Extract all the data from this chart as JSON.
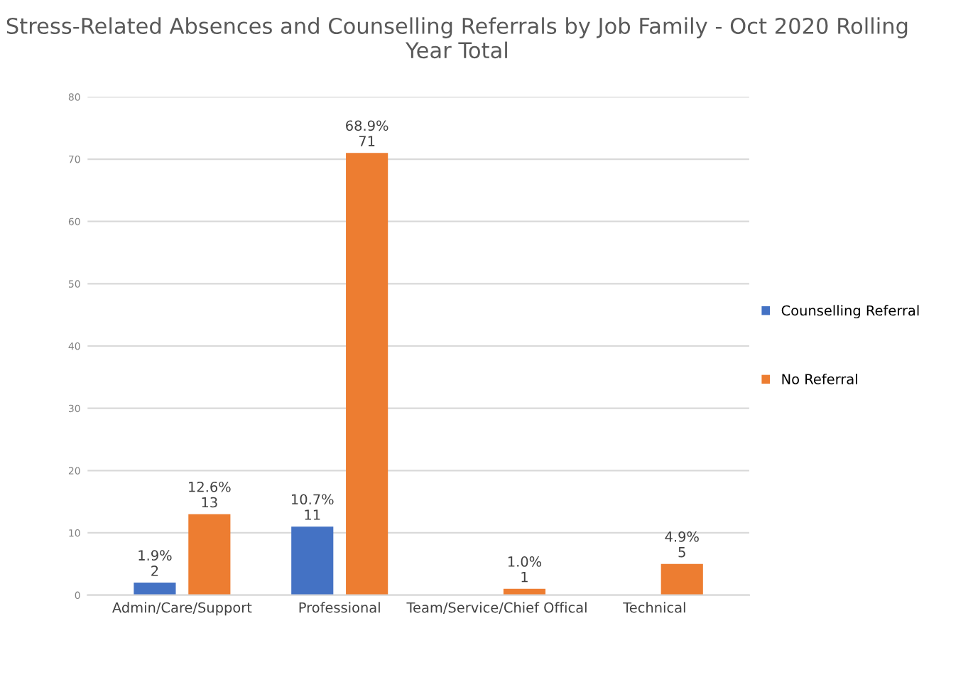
{
  "chart_data": {
    "type": "bar",
    "title": "Stress-Related Absences and Counselling Referrals by Job Family - Oct 2020 Rolling Year Total",
    "categories": [
      "Admin/Care/Support",
      "Professional",
      "Team/Service/Chief Offical",
      "Technical"
    ],
    "series": [
      {
        "name": "Counselling Referral",
        "color": "#4472c4",
        "values": [
          2,
          11,
          null,
          null
        ],
        "value_labels": [
          "1.9%\n2",
          "10.7%\n11",
          null,
          null
        ]
      },
      {
        "name": "No Referral",
        "color": "#ed7d31",
        "values": [
          13,
          71,
          1,
          5
        ],
        "value_labels": [
          "12.6%\n13",
          "68.9%\n71",
          "1.0%\n1",
          "4.9%\n5"
        ]
      }
    ],
    "ylim": [
      0,
      80
    ],
    "yticks": [
      0,
      10,
      20,
      30,
      40,
      50,
      60,
      70,
      80
    ],
    "grid": "y",
    "legend": "right"
  }
}
